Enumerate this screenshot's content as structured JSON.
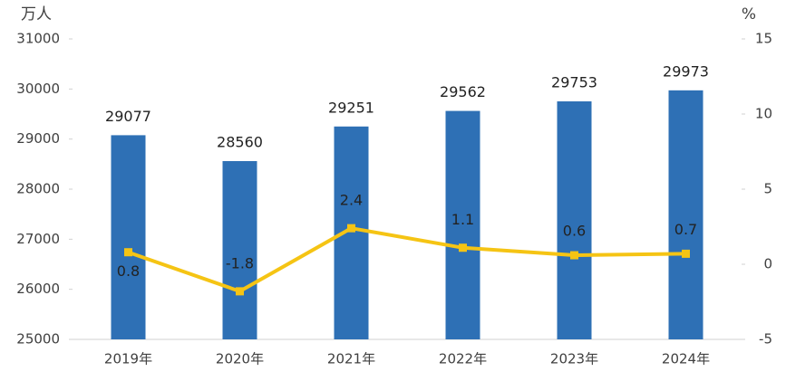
{
  "chart_data": {
    "type": "bar",
    "y_label": "万人",
    "y2_label": "%",
    "categories": [
      "2019年",
      "2020年",
      "2021年",
      "2022年",
      "2023年",
      "2024年"
    ],
    "series": [
      {
        "color": "#2e70b5",
        "values": [
          29077,
          28560,
          29251,
          29562,
          29753,
          29973
        ]
      },
      {
        "type": "line",
        "axis": "y2",
        "color": "#f5c414",
        "values": [
          0.8,
          -1.8,
          2.4,
          1.1,
          0.6,
          0.7
        ]
      }
    ],
    "ylim": [
      25000,
      31000
    ],
    "yticks": [
      25000,
      26000,
      27000,
      28000,
      29000,
      30000,
      31000
    ],
    "y2lim": [
      -5,
      15
    ],
    "y2ticks": [
      -5,
      0,
      5,
      10,
      15
    ]
  }
}
